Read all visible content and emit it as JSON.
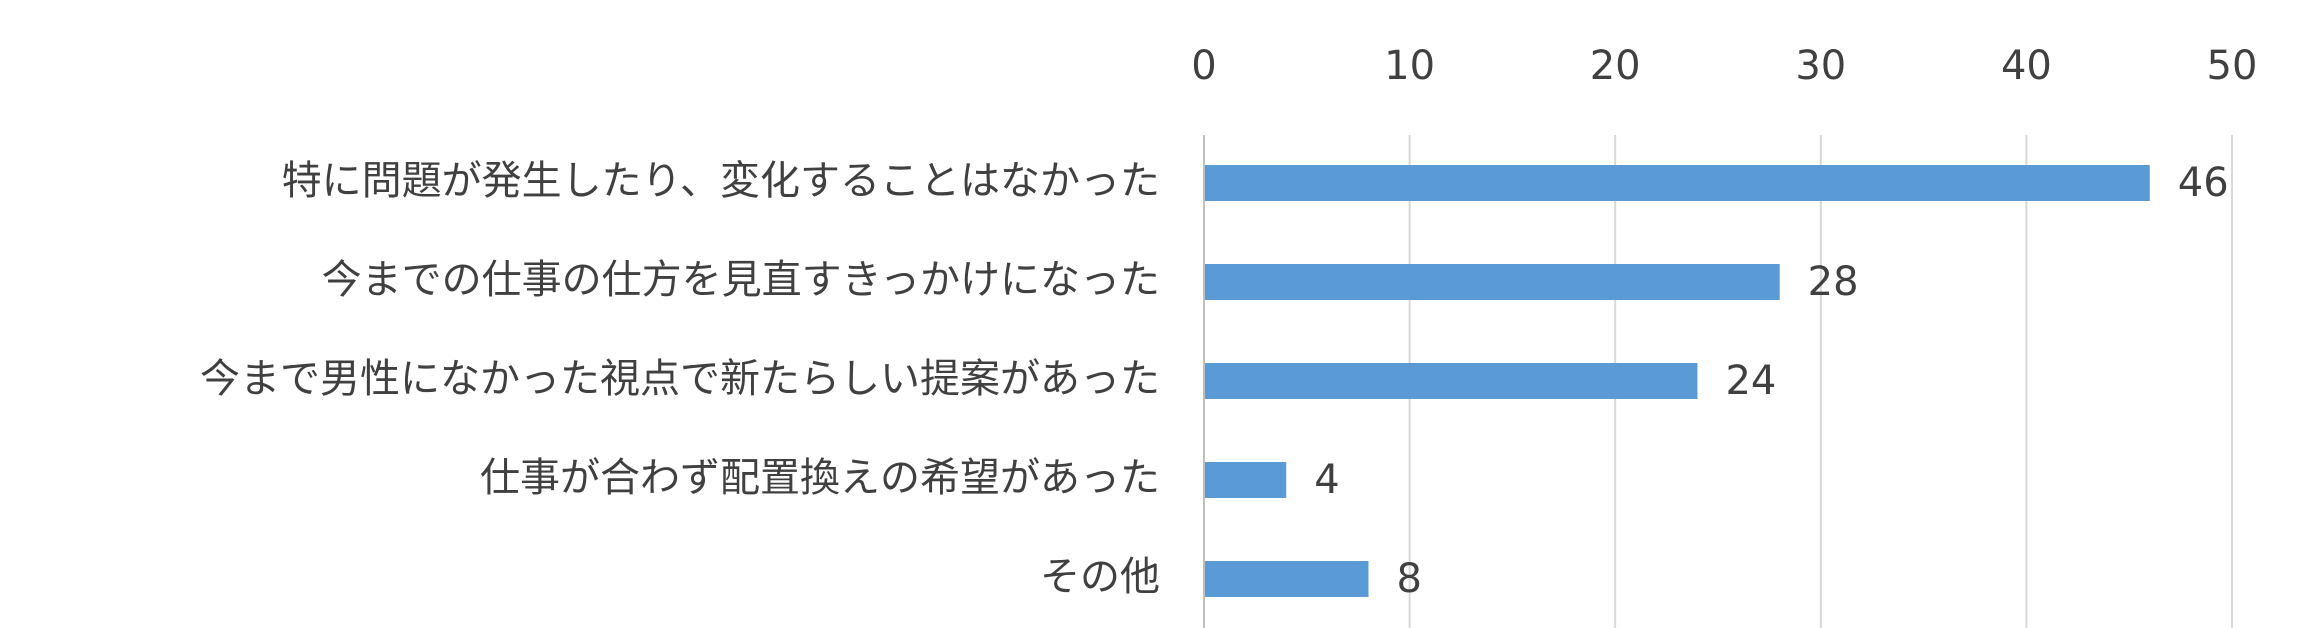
{
  "chart_data": {
    "type": "bar",
    "orientation": "horizontal",
    "categories": [
      "特に問題が発生したり、変化することはなかった",
      "今までの仕事の仕方を見直すきっかけになった",
      "今まで男性になかった視点で新たらしい提案があった",
      "仕事が合わず配置換えの希望があった",
      "その他"
    ],
    "values": [
      46,
      28,
      24,
      4,
      8
    ],
    "xlim": [
      0,
      50
    ],
    "ticks": [
      "0",
      "10",
      "20",
      "30",
      "40",
      "50"
    ],
    "tick_axis_position": "top",
    "grid": true,
    "legend": "none",
    "title": "",
    "xlabel": "",
    "ylabel": "",
    "colors": {
      "bar": "#5B9BD5",
      "grid": "#D9D9D9",
      "axis": "#BFBFBF",
      "text": "#404040"
    }
  }
}
